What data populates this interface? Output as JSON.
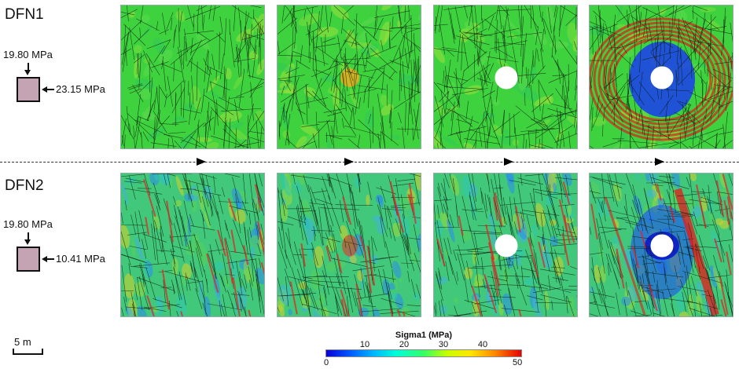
{
  "rows": [
    {
      "label": "DFN1",
      "vertical_stress": "19.80 MPa",
      "horizontal_stress": "23.15 MPa"
    },
    {
      "label": "DFN2",
      "vertical_stress": "19.80 MPa",
      "horizontal_stress": "10.41 MPa"
    }
  ],
  "scale_bar": {
    "label": "5 m"
  },
  "colorbar": {
    "title": "Sigma1 (MPa)",
    "min_label": "0",
    "max_label": "50",
    "ticks": [
      "10",
      "20",
      "30",
      "40"
    ],
    "min": 0,
    "max": 50
  },
  "colors": {
    "specimen_fill": "#c4a3b3",
    "field_green": "#38d23a",
    "high_stress": "#e60000",
    "low_stress": "#0033ff"
  }
}
